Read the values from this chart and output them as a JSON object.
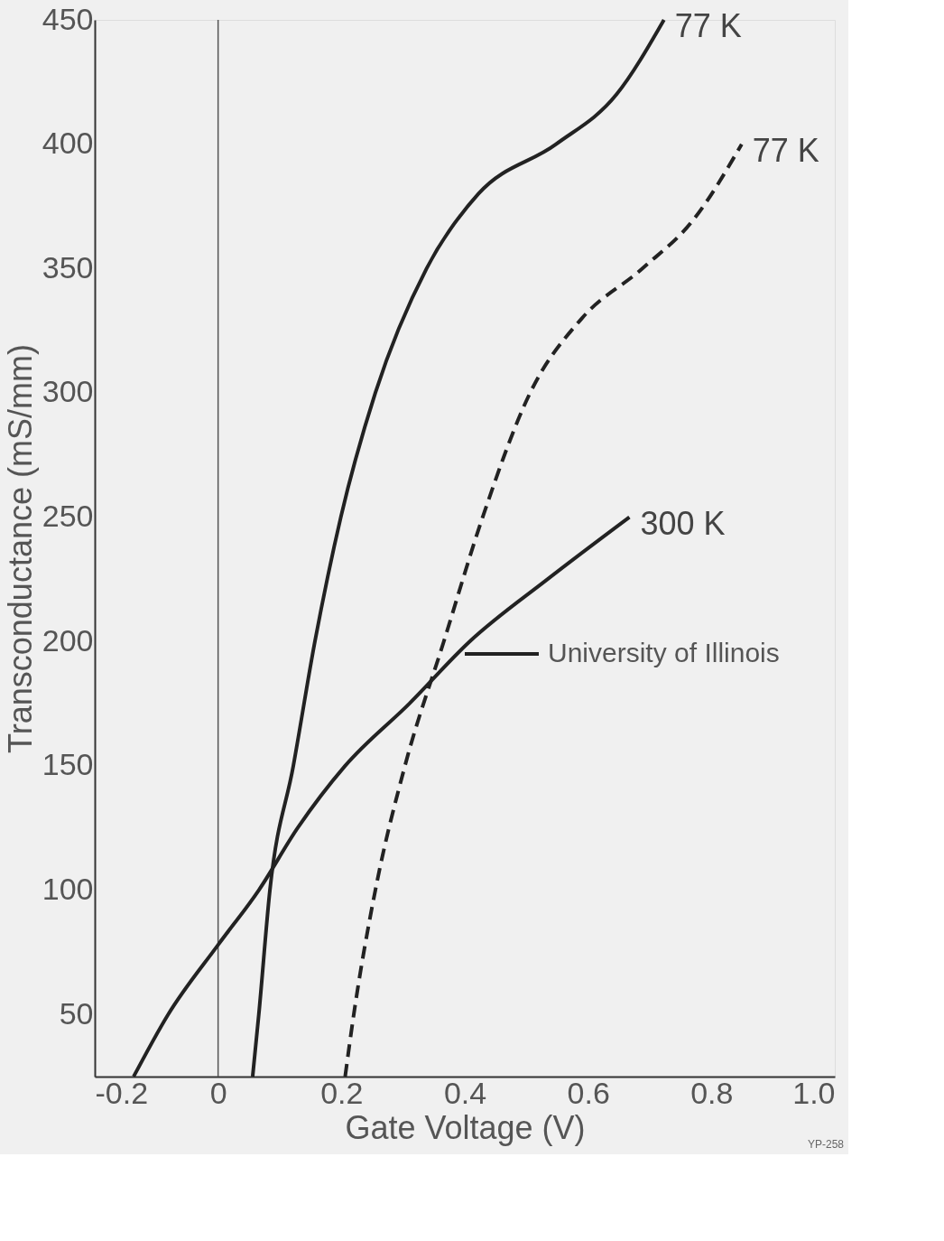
{
  "chart_data": {
    "type": "line",
    "xlabel": "Gate Voltage  (V)",
    "ylabel": "Transconductance  (mS/mm)",
    "xlim": [
      -0.2,
      1.0
    ],
    "xticks": [
      -0.2,
      0,
      0.2,
      0.4,
      0.6,
      0.8,
      {
        "value": 1.0,
        "label": "1.0"
      }
    ],
    "ylim": [
      25,
      450
    ],
    "yticks": [
      50,
      100,
      150,
      200,
      250,
      300,
      350,
      400,
      450
    ],
    "grid": false,
    "legend": "right",
    "marker": "none",
    "ref_lines": [
      {
        "axis": "x",
        "value": 0,
        "color": "#555555"
      }
    ],
    "annotations": [
      "University of Illinois",
      "YP-258"
    ],
    "series": [
      {
        "name": "77 K",
        "color": "#222222",
        "line_style": "solid",
        "x": [
          0.056,
          0.066,
          0.084,
          0.122,
          0.157,
          0.199,
          0.255,
          0.338,
          0.422,
          0.548,
          0.646,
          0.723
        ],
        "values": [
          25,
          50,
          100,
          150,
          200,
          250,
          300,
          350,
          380,
          400,
          420,
          450
        ]
      },
      {
        "name": "300 K",
        "color": "#222222",
        "line_style": "solid",
        "x": [
          -0.137,
          -0.081,
          0,
          0.066,
          0.129,
          0.206,
          0.31,
          0.408,
          0.534,
          0.667
        ],
        "values": [
          25,
          50,
          78,
          100,
          125,
          150,
          175,
          200,
          225,
          250
        ]
      },
      {
        "name": "77 K",
        "color": "#222222",
        "line_style": "dashed",
        "x": [
          0.206,
          0.22,
          0.255,
          0.303,
          0.366,
          0.429,
          0.506,
          0.59,
          0.688,
          0.772,
          0.849
        ],
        "values": [
          25,
          50,
          100,
          150,
          200,
          250,
          300,
          330,
          350,
          370,
          400
        ]
      }
    ]
  }
}
